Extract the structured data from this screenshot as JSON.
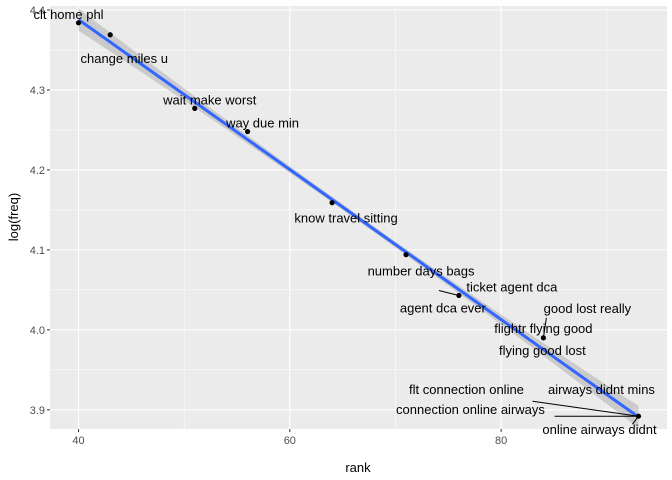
{
  "chart_data": {
    "type": "scatter",
    "xlabel": "rank",
    "ylabel": "log(freq)",
    "xlim": [
      37.3,
      95.7
    ],
    "ylim": [
      3.876,
      4.405
    ],
    "x_ticks": [
      40,
      60,
      80
    ],
    "x_tick_labels": [
      "40",
      "60",
      "80"
    ],
    "y_ticks": [
      3.9,
      4.0,
      4.1,
      4.2,
      4.3,
      4.4
    ],
    "y_tick_labels": [
      "3.9",
      "4.0",
      "4.1",
      "4.2",
      "4.3",
      "4.4"
    ],
    "grid": true,
    "points": [
      {
        "x": 40,
        "y": 4.384
      },
      {
        "x": 43,
        "y": 4.369
      },
      {
        "x": 51,
        "y": 4.277
      },
      {
        "x": 56,
        "y": 4.248
      },
      {
        "x": 64,
        "y": 4.159
      },
      {
        "x": 71,
        "y": 4.094
      },
      {
        "x": 76,
        "y": 4.043
      },
      {
        "x": 84,
        "y": 3.99
      },
      {
        "x": 93,
        "y": 3.892
      }
    ],
    "labels": [
      {
        "text": "clt home phl",
        "x": 40,
        "y": 4.384
      },
      {
        "text": "change miles u",
        "x": 43,
        "y": 4.369
      },
      {
        "text": "wait make worst",
        "x": 51,
        "y": 4.277
      },
      {
        "text": "way due min",
        "x": 56,
        "y": 4.248
      },
      {
        "text": "know travel sitting",
        "x": 64,
        "y": 4.159
      },
      {
        "text": "number days bags",
        "x": 71,
        "y": 4.094
      },
      {
        "text": "ticket agent dca",
        "x": 76,
        "y": 4.043
      },
      {
        "text": "agent dca ever",
        "x": 76,
        "y": 4.043
      },
      {
        "text": "good lost really",
        "x": 84,
        "y": 3.99
      },
      {
        "text": "flightr flying good",
        "x": 84,
        "y": 3.99
      },
      {
        "text": "flying good lost",
        "x": 84,
        "y": 3.99
      },
      {
        "text": "flt connection online",
        "x": 93,
        "y": 3.892
      },
      {
        "text": "airways didnt mins",
        "x": 93,
        "y": 3.892
      },
      {
        "text": "connection online airways",
        "x": 93,
        "y": 3.892
      },
      {
        "text": "online airways didnt",
        "x": 93,
        "y": 3.892
      }
    ],
    "trend": {
      "method": "lm",
      "x_range": [
        40,
        93
      ],
      "y_range": [
        4.388,
        3.891
      ],
      "se_band": true
    },
    "colors": {
      "panel": "#ebebeb",
      "grid": "#ffffff",
      "line": "#3366ff",
      "ribbon": "#999999",
      "point": "#000000"
    }
  }
}
